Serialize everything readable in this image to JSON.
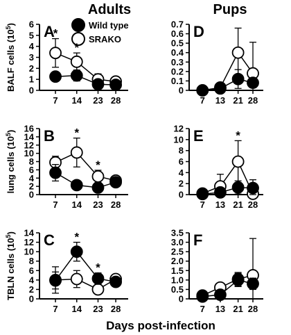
{
  "column_titles": {
    "left": "Adults",
    "right": "Pups"
  },
  "x_axis_label": "Days post-infection",
  "legend": [
    {
      "name": "Wild type",
      "marker": "filled-circle"
    },
    {
      "name": "SRAKO",
      "marker": "open-circle"
    }
  ],
  "colors": {
    "wild_type": "#000000",
    "srako": "#ffffff",
    "stroke": "#000000"
  },
  "chart_data": [
    {
      "type": "line",
      "panel": "A",
      "ylabel": "BALF cells (10⁵)",
      "ylabel_main": "BALF cells (10",
      "ylabel_exp": "5",
      "ylabel_close": ")",
      "x": [
        "7",
        "14",
        "23",
        "28"
      ],
      "ylim": [
        0,
        6
      ],
      "yticks": [
        "0",
        "1",
        "2",
        "3",
        "4",
        "5",
        "6"
      ],
      "series": [
        {
          "name": "Wild type",
          "values": [
            1.25,
            1.35,
            0.55,
            0.5
          ],
          "err": [
            0.3,
            0.5,
            0.3,
            0.2
          ]
        },
        {
          "name": "SRAKO",
          "values": [
            3.4,
            2.6,
            1.0,
            0.8
          ],
          "err": [
            1.3,
            0.8,
            0.5,
            0.3
          ]
        }
      ],
      "significant": [
        "7",
        "14"
      ]
    },
    {
      "type": "line",
      "panel": "B",
      "ylabel": "lung cells (10⁵)",
      "ylabel_main": "lung cells (10",
      "ylabel_exp": "5",
      "ylabel_close": ")",
      "x": [
        "7",
        "14",
        "23",
        "28"
      ],
      "ylim": [
        0,
        16
      ],
      "yticks": [
        "0",
        "2",
        "4",
        "6",
        "8",
        "10",
        "12",
        "14",
        "16"
      ],
      "series": [
        {
          "name": "Wild type",
          "values": [
            5.3,
            2.3,
            1.7,
            3.0
          ],
          "err": [
            2.0,
            1.0,
            0.8,
            0.5
          ]
        },
        {
          "name": "SRAKO",
          "values": [
            7.8,
            10.2,
            4.4,
            3.4
          ],
          "err": [
            1.5,
            3.5,
            1.5,
            0.5
          ]
        }
      ],
      "significant": [
        "14",
        "23"
      ]
    },
    {
      "type": "line",
      "panel": "C",
      "ylabel": "TBLN cells (10⁵)",
      "ylabel_main": "TBLN cells (10",
      "ylabel_exp": "5",
      "ylabel_close": ")",
      "x": [
        "7",
        "14",
        "23",
        "28"
      ],
      "ylim": [
        0,
        14
      ],
      "yticks": [
        "0",
        "2",
        "4",
        "6",
        "8",
        "10",
        "12",
        "14"
      ],
      "series": [
        {
          "name": "Wild type",
          "values": [
            3.9,
            10.0,
            4.3,
            3.6
          ],
          "err": [
            1.8,
            2.0,
            1.2,
            0.8
          ]
        },
        {
          "name": "SRAKO",
          "values": [
            4.0,
            4.2,
            2.0,
            4.2
          ],
          "err": [
            2.8,
            1.8,
            1.0,
            1.0
          ]
        }
      ],
      "significant": [
        "14",
        "23"
      ]
    },
    {
      "type": "line",
      "panel": "D",
      "x": [
        "7",
        "13",
        "21",
        "28"
      ],
      "ylim": [
        0,
        0.7
      ],
      "yticks": [
        "0",
        "0.1",
        "0.2",
        "0.3",
        "0.4",
        "0.5",
        "0.6",
        "0.7"
      ],
      "series": [
        {
          "name": "Wild type",
          "values": [
            0.0,
            0.02,
            0.12,
            0.08
          ],
          "err": [
            0.01,
            0.02,
            0.1,
            0.05
          ]
        },
        {
          "name": "SRAKO",
          "values": [
            0.0,
            0.03,
            0.4,
            0.18
          ],
          "err": [
            0.01,
            0.03,
            0.26,
            0.33
          ]
        }
      ],
      "significant": []
    },
    {
      "type": "line",
      "panel": "E",
      "x": [
        "7",
        "13",
        "21",
        "28"
      ],
      "ylim": [
        0,
        12
      ],
      "yticks": [
        "0",
        "2",
        "4",
        "6",
        "8",
        "10",
        "12"
      ],
      "series": [
        {
          "name": "Wild type",
          "values": [
            0.1,
            0.4,
            1.3,
            1.2
          ],
          "err": [
            0.2,
            0.6,
            1.2,
            1.5
          ]
        },
        {
          "name": "SRAKO",
          "values": [
            0.2,
            1.5,
            6.0,
            0.15
          ],
          "err": [
            0.3,
            2.2,
            3.8,
            0.3
          ]
        }
      ],
      "significant": [
        "21"
      ]
    },
    {
      "type": "line",
      "panel": "F",
      "x": [
        "7",
        "13",
        "21",
        "28"
      ],
      "ylim": [
        0,
        3.5
      ],
      "yticks": [
        "0",
        "0.5",
        "1.0",
        "1.5",
        "2.0",
        "2.5",
        "3.0",
        "3.5"
      ],
      "series": [
        {
          "name": "Wild type",
          "values": [
            0.12,
            0.22,
            1.0,
            0.8
          ],
          "err": [
            0.05,
            0.1,
            0.35,
            0.3
          ]
        },
        {
          "name": "SRAKO",
          "values": [
            0.18,
            0.6,
            1.05,
            1.25
          ],
          "err": [
            0.08,
            0.2,
            0.35,
            1.95
          ]
        }
      ],
      "significant": []
    }
  ]
}
